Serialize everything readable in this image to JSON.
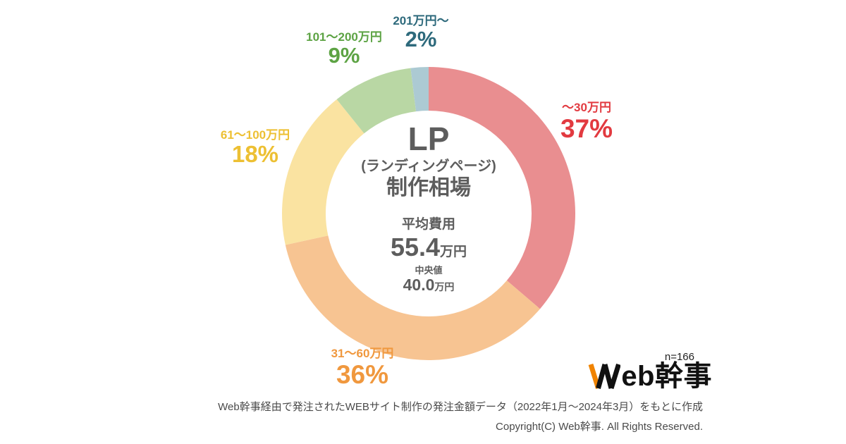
{
  "chart_data": {
    "type": "pie",
    "donut": true,
    "title": "LP(ランディングページ)制作相場",
    "start_angle_deg": 0,
    "direction": "clockwise",
    "legend_position": "around",
    "segments": [
      {
        "label": "〜30万円",
        "value": 37,
        "percent_label": "37%",
        "color": "#e98e90",
        "label_color": "#e23a40"
      },
      {
        "label": "31〜60万円",
        "value": 36,
        "percent_label": "36%",
        "color": "#f7c492",
        "label_color": "#f0983e"
      },
      {
        "label": "61〜100万円",
        "value": 18,
        "percent_label": "18%",
        "color": "#fae3a1",
        "label_color": "#edc033"
      },
      {
        "label": "101〜200万円",
        "value": 9,
        "percent_label": "9%",
        "color": "#b9d7a4",
        "label_color": "#5da344"
      },
      {
        "label": "201万円〜",
        "value": 2,
        "percent_label": "2%",
        "color": "#accad3",
        "label_color": "#2e6a7c"
      }
    ]
  },
  "center": {
    "title_main": "LP",
    "title_sub": "(ランディングページ)",
    "title_caption": "制作相場",
    "average_caption": "平均費用",
    "average_value": "55.4",
    "average_unit": "万円",
    "median_caption": "中央値",
    "median_value": "40.0",
    "median_unit": "万円",
    "text_color": "#5d5d5d"
  },
  "footer": {
    "sample_size": "n=166",
    "logo_text": "Web幹事",
    "logo_text_rest": "eb幹事",
    "logo_accent_color": "#f08300",
    "source_note": "Web幹事経由で発注されたWEBサイト制作の発注金額データ（2022年1月〜2024年3月）をもとに作成",
    "copyright": "Copyright(C) Web幹事. All Rights Reserved."
  }
}
